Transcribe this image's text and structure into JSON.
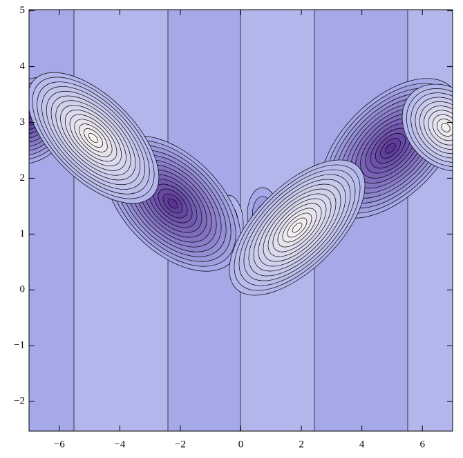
{
  "chart_data": {
    "type": "contour",
    "xlim": [
      -7,
      7
    ],
    "ylim": [
      -2.53,
      5.02
    ],
    "xticks": [
      {
        "value": -6,
        "label": "−6"
      },
      {
        "value": -4,
        "label": "−4"
      },
      {
        "value": -2,
        "label": "−2"
      },
      0,
      2,
      4,
      6
    ],
    "yticks": [
      {
        "value": -2,
        "label": "−2"
      },
      {
        "value": -1,
        "label": "−1"
      },
      0,
      1,
      2,
      3,
      4,
      5
    ]
  }
}
